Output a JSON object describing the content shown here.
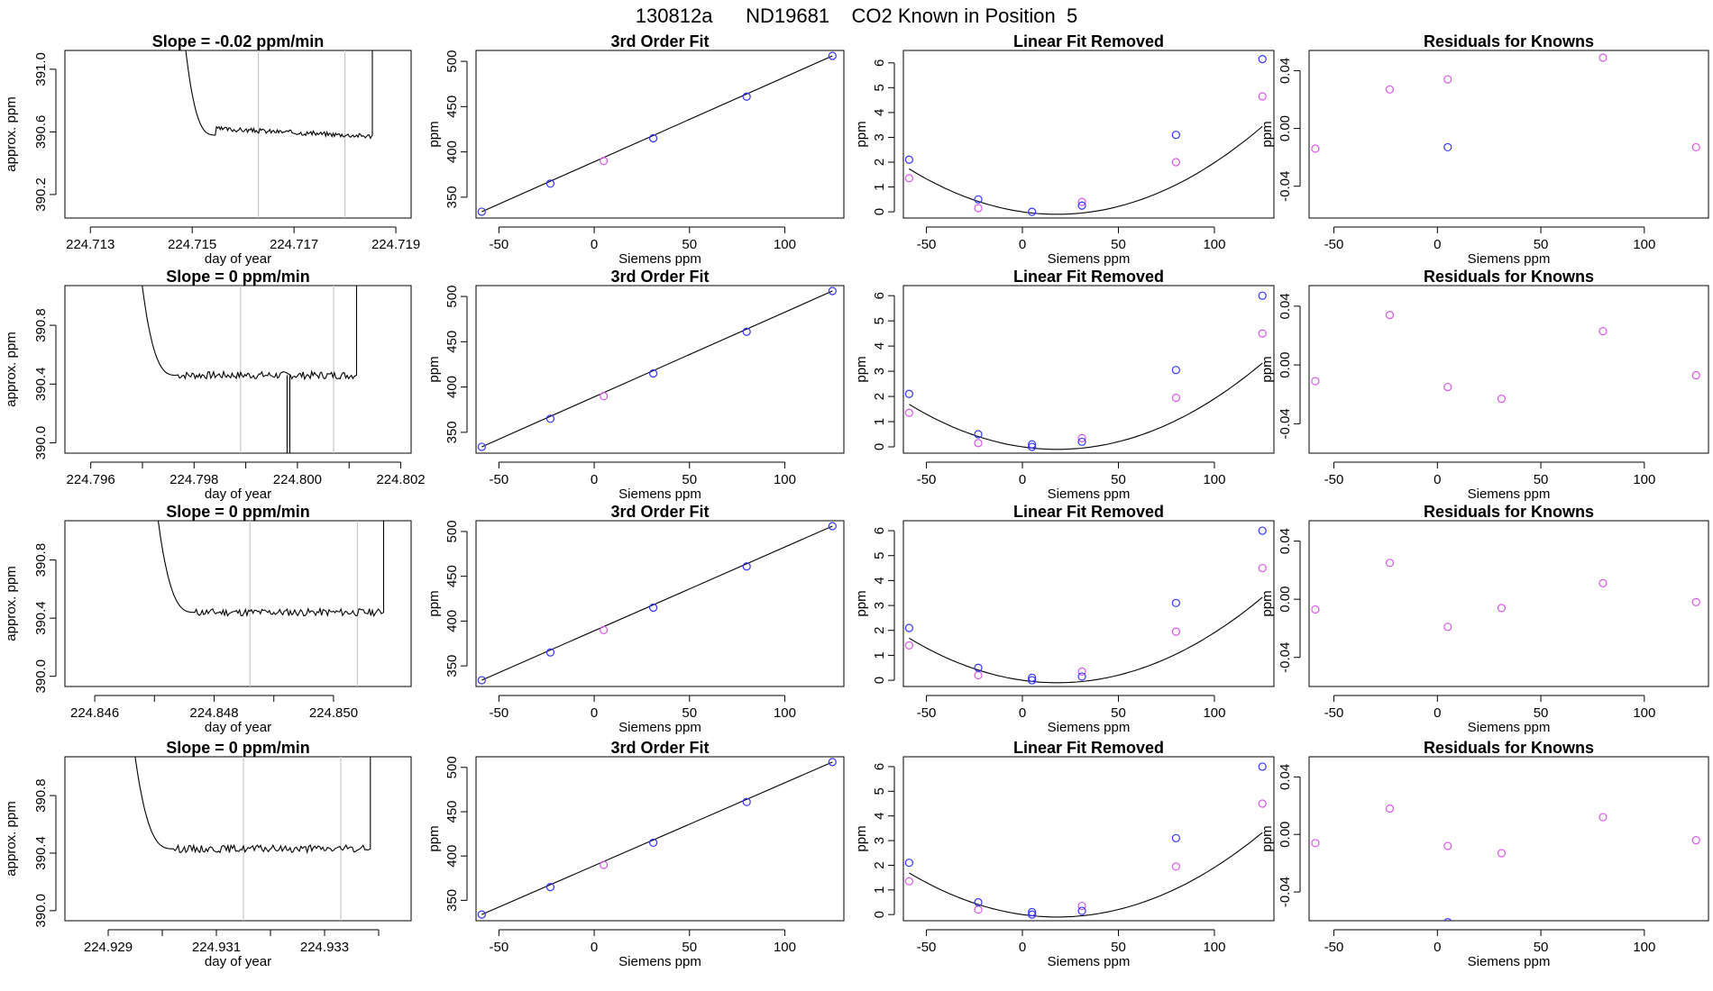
{
  "figure": {
    "title": "130812a      ND19681    CO2 Known in Position  5",
    "colors": {
      "blue": "#3333ff",
      "magenta": "#dd55ee",
      "grey": "#c8c8c8",
      "line": "#000000"
    }
  },
  "chart_data": [
    {
      "type": "line",
      "row": 0,
      "title": "Slope =  -0.02  ppm/min",
      "xlabel": "day of year",
      "ylabel": "approx. ppm",
      "xlim": [
        224.7125,
        224.7193
      ],
      "ylim": [
        390.05,
        391.12
      ],
      "xticks": [
        224.713,
        224.715,
        224.717,
        224.719
      ],
      "xtick_labels": [
        "224.713",
        "224.715",
        "224.717",
        "224.719"
      ],
      "yticks": [
        390.2,
        390.6,
        391.0
      ],
      "ytick_labels": [
        "390.2",
        "390.6",
        "391.0"
      ],
      "vlines": [
        224.7163,
        224.718
      ],
      "trace": {
        "x_start": 224.7146,
        "x_end": 224.7185,
        "level": 390.58
      },
      "spike_at": null
    },
    {
      "type": "scatter",
      "row": 0,
      "title": "3rd Order Fit",
      "xlabel": "Siemens ppm",
      "ylabel": "ppm",
      "xlim": [
        -62,
        131
      ],
      "ylim": [
        327,
        512
      ],
      "xticks": [
        -50,
        0,
        50,
        100
      ],
      "xtick_labels": [
        "-50",
        "0",
        "50",
        "100"
      ],
      "yticks": [
        350,
        400,
        450,
        500
      ],
      "ytick_labels": [
        "350",
        "400",
        "450",
        "500"
      ],
      "fit_line": {
        "x": [
          -59,
          125
        ],
        "y": [
          334,
          506
        ]
      },
      "blue_points": {
        "x": [
          -59,
          -23,
          31,
          80,
          125
        ],
        "y": [
          334,
          365,
          415,
          461,
          506
        ]
      },
      "magenta_points": {
        "x": [
          5
        ],
        "y": [
          390
        ]
      }
    },
    {
      "type": "scatter",
      "row": 0,
      "title": "Linear Fit Removed",
      "xlabel": "Siemens ppm",
      "ylabel": "ppm",
      "xlim": [
        -62,
        131
      ],
      "ylim": [
        -0.25,
        6.5
      ],
      "xticks": [
        -50,
        0,
        50,
        100
      ],
      "xtick_labels": [
        "-50",
        "0",
        "50",
        "100"
      ],
      "yticks": [
        0,
        1,
        2,
        3,
        4,
        5,
        6
      ],
      "ytick_labels": [
        "0",
        "1",
        "2",
        "3",
        "4",
        "5",
        "6"
      ],
      "curve_coeffs": [
        0.0,
        -0.0111,
        0.000309
      ],
      "blue_points": {
        "x": [
          -59,
          -23,
          5,
          31,
          80,
          125
        ],
        "y": [
          2.1,
          0.5,
          0.0,
          0.25,
          3.1,
          6.15
        ]
      },
      "magenta_points": {
        "x": [
          -59,
          -23,
          31,
          80,
          125
        ],
        "y": [
          1.35,
          0.15,
          0.4,
          2.0,
          4.65
        ]
      }
    },
    {
      "type": "scatter",
      "row": 0,
      "title": "Residuals for Knowns",
      "xlabel": "Siemens ppm",
      "ylabel": "ppm",
      "xlim": [
        -62,
        131
      ],
      "ylim": [
        -0.062,
        0.054
      ],
      "xticks": [
        -50,
        0,
        50,
        100
      ],
      "xtick_labels": [
        "-50",
        "0",
        "50",
        "100"
      ],
      "yticks": [
        -0.04,
        0,
        0.04
      ],
      "ytick_labels": [
        "-0.04",
        "0.00",
        "0.04"
      ],
      "blue_points": {
        "x": [
          5
        ],
        "y": [
          -0.013
        ]
      },
      "magenta_points": {
        "x": [
          -59,
          -23,
          5,
          80,
          125
        ],
        "y": [
          -0.014,
          0.027,
          0.034,
          0.049,
          -0.013
        ]
      }
    },
    {
      "type": "line",
      "row": 1,
      "title": "Slope =  0  ppm/min",
      "xlabel": "day of year",
      "ylabel": "approx. ppm",
      "xlim": [
        224.7955,
        224.8022
      ],
      "ylim": [
        389.93,
        391.07
      ],
      "xticks": [
        224.796,
        224.797,
        224.798,
        224.799,
        224.8,
        224.801,
        224.802
      ],
      "xtick_labels": [
        "224.796",
        "",
        "224.798",
        "",
        "224.800",
        "",
        "224.802"
      ],
      "yticks": [
        390.0,
        390.4,
        390.8
      ],
      "ytick_labels": [
        "390.0",
        "390.4",
        "390.8"
      ],
      "vlines": [
        224.7989,
        224.8007
      ],
      "trace": {
        "x_start": 224.7967,
        "x_end": 224.8011,
        "level": 390.46
      },
      "spike_at": 224.7998
    },
    {
      "type": "scatter",
      "row": 1,
      "title": "3rd Order Fit",
      "xlabel": "Siemens ppm",
      "ylabel": "ppm",
      "xlim": [
        -62,
        131
      ],
      "ylim": [
        327,
        512
      ],
      "xticks": [
        -50,
        0,
        50,
        100
      ],
      "xtick_labels": [
        "-50",
        "0",
        "50",
        "100"
      ],
      "yticks": [
        350,
        400,
        450,
        500
      ],
      "ytick_labels": [
        "350",
        "400",
        "450",
        "500"
      ],
      "fit_line": {
        "x": [
          -59,
          125
        ],
        "y": [
          334,
          506
        ]
      },
      "blue_points": {
        "x": [
          -59,
          -23,
          31,
          80,
          125
        ],
        "y": [
          334,
          365,
          415,
          461,
          506
        ]
      },
      "magenta_points": {
        "x": [
          5
        ],
        "y": [
          390
        ]
      }
    },
    {
      "type": "scatter",
      "row": 1,
      "title": "Linear Fit Removed",
      "xlabel": "Siemens ppm",
      "ylabel": "ppm",
      "xlim": [
        -62,
        131
      ],
      "ylim": [
        -0.25,
        6.4
      ],
      "xticks": [
        -50,
        0,
        50,
        100
      ],
      "xtick_labels": [
        "-50",
        "0",
        "50",
        "100"
      ],
      "yticks": [
        0,
        1,
        2,
        3,
        4,
        5,
        6
      ],
      "ytick_labels": [
        "0",
        "1",
        "2",
        "3",
        "4",
        "5",
        "6"
      ],
      "curve_coeffs": [
        0.0,
        -0.0109,
        0.0003
      ],
      "blue_points": {
        "x": [
          -59,
          -23,
          5,
          5,
          31,
          80,
          125
        ],
        "y": [
          2.1,
          0.5,
          0.1,
          0.0,
          0.2,
          3.05,
          6.0
        ]
      },
      "magenta_points": {
        "x": [
          -59,
          -23,
          31,
          80,
          125
        ],
        "y": [
          1.35,
          0.15,
          0.35,
          1.95,
          4.5
        ]
      }
    },
    {
      "type": "scatter",
      "row": 1,
      "title": "Residuals for Knowns",
      "xlabel": "Siemens ppm",
      "ylabel": "ppm",
      "xlim": [
        -62,
        131
      ],
      "ylim": [
        -0.06,
        0.054
      ],
      "xticks": [
        -50,
        0,
        50,
        100
      ],
      "xtick_labels": [
        "-50",
        "0",
        "50",
        "100"
      ],
      "yticks": [
        -0.04,
        0,
        0.04
      ],
      "ytick_labels": [
        "-0.04",
        "0.00",
        "0.04"
      ],
      "blue_points": {
        "x": [],
        "y": []
      },
      "magenta_points": {
        "x": [
          -59,
          -23,
          5,
          31,
          80,
          125
        ],
        "y": [
          -0.011,
          0.034,
          -0.015,
          -0.023,
          0.023,
          -0.007
        ]
      }
    },
    {
      "type": "line",
      "row": 2,
      "title": "Slope =  0  ppm/min",
      "xlabel": "day of year",
      "ylabel": "approx. ppm",
      "xlim": [
        224.8455,
        224.8513
      ],
      "ylim": [
        389.93,
        391.07
      ],
      "xticks": [
        224.846,
        224.847,
        224.848,
        224.849,
        224.85
      ],
      "xtick_labels": [
        "224.846",
        "",
        "224.848",
        "",
        "224.850"
      ],
      "yticks": [
        390.0,
        390.4,
        390.8
      ],
      "ytick_labels": [
        "390.0",
        "390.4",
        "390.8"
      ],
      "vlines": [
        224.8486,
        224.8504
      ],
      "trace": {
        "x_start": 224.8468,
        "x_end": 224.8508,
        "level": 390.44
      },
      "spike_at": null
    },
    {
      "type": "scatter",
      "row": 2,
      "title": "3rd Order Fit",
      "xlabel": "Siemens ppm",
      "ylabel": "ppm",
      "xlim": [
        -62,
        131
      ],
      "ylim": [
        327,
        512
      ],
      "xticks": [
        -50,
        0,
        50,
        100
      ],
      "xtick_labels": [
        "-50",
        "0",
        "50",
        "100"
      ],
      "yticks": [
        350,
        400,
        450,
        500
      ],
      "ytick_labels": [
        "350",
        "400",
        "450",
        "500"
      ],
      "fit_line": {
        "x": [
          -59,
          125
        ],
        "y": [
          334,
          506
        ]
      },
      "blue_points": {
        "x": [
          -59,
          -23,
          31,
          80,
          125
        ],
        "y": [
          334,
          365,
          415,
          461,
          506
        ]
      },
      "magenta_points": {
        "x": [
          5
        ],
        "y": [
          390
        ]
      }
    },
    {
      "type": "scatter",
      "row": 2,
      "title": "Linear Fit Removed",
      "xlabel": "Siemens ppm",
      "ylabel": "ppm",
      "xlim": [
        -62,
        131
      ],
      "ylim": [
        -0.25,
        6.4
      ],
      "xticks": [
        -50,
        0,
        50,
        100
      ],
      "xtick_labels": [
        "-50",
        "0",
        "50",
        "100"
      ],
      "yticks": [
        0,
        1,
        2,
        3,
        4,
        5,
        6
      ],
      "ytick_labels": [
        "0",
        "1",
        "2",
        "3",
        "4",
        "5",
        "6"
      ],
      "curve_coeffs": [
        0.0,
        -0.0109,
        0.0003
      ],
      "blue_points": {
        "x": [
          -59,
          -23,
          5,
          5,
          31,
          80,
          125
        ],
        "y": [
          2.1,
          0.5,
          0.1,
          0.0,
          0.15,
          3.1,
          6.0
        ]
      },
      "magenta_points": {
        "x": [
          -59,
          -23,
          31,
          80,
          125
        ],
        "y": [
          1.4,
          0.2,
          0.35,
          1.95,
          4.5
        ]
      }
    },
    {
      "type": "scatter",
      "row": 2,
      "title": "Residuals for Knowns",
      "xlabel": "Siemens ppm",
      "ylabel": "ppm",
      "xlim": [
        -62,
        131
      ],
      "ylim": [
        -0.06,
        0.054
      ],
      "xticks": [
        -50,
        0,
        50,
        100
      ],
      "xtick_labels": [
        "-50",
        "0",
        "50",
        "100"
      ],
      "yticks": [
        -0.04,
        0,
        0.04
      ],
      "ytick_labels": [
        "-0.04",
        "0.00",
        "0.04"
      ],
      "blue_points": {
        "x": [],
        "y": []
      },
      "magenta_points": {
        "x": [
          -59,
          -23,
          5,
          31,
          80,
          125
        ],
        "y": [
          -0.007,
          0.025,
          -0.019,
          -0.006,
          0.011,
          -0.002
        ]
      }
    },
    {
      "type": "line",
      "row": 3,
      "title": "Slope =  0  ppm/min",
      "xlabel": "day of year",
      "ylabel": "approx. ppm",
      "xlim": [
        224.9282,
        224.9346
      ],
      "ylim": [
        389.93,
        391.07
      ],
      "xticks": [
        224.929,
        224.93,
        224.931,
        224.932,
        224.933,
        224.934
      ],
      "xtick_labels": [
        "224.929",
        "",
        "224.931",
        "",
        "224.933",
        ""
      ],
      "yticks": [
        390.0,
        390.4,
        390.8
      ],
      "ytick_labels": [
        "390.0",
        "390.4",
        "390.8"
      ],
      "vlines": [
        224.9315,
        224.9333
      ],
      "trace": {
        "x_start": 224.9292,
        "x_end": 224.9338,
        "level": 390.43
      },
      "spike_at": null
    },
    {
      "type": "scatter",
      "row": 3,
      "title": "3rd Order Fit",
      "xlabel": "Siemens ppm",
      "ylabel": "ppm",
      "xlim": [
        -62,
        131
      ],
      "ylim": [
        327,
        512
      ],
      "xticks": [
        -50,
        0,
        50,
        100
      ],
      "xtick_labels": [
        "-50",
        "0",
        "50",
        "100"
      ],
      "yticks": [
        350,
        400,
        450,
        500
      ],
      "ytick_labels": [
        "350",
        "400",
        "450",
        "500"
      ],
      "fit_line": {
        "x": [
          -59,
          125
        ],
        "y": [
          334,
          506
        ]
      },
      "blue_points": {
        "x": [
          -59,
          -23,
          31,
          80,
          125
        ],
        "y": [
          334,
          365,
          415,
          461,
          506
        ]
      },
      "magenta_points": {
        "x": [
          5
        ],
        "y": [
          390
        ]
      }
    },
    {
      "type": "scatter",
      "row": 3,
      "title": "Linear Fit Removed",
      "xlabel": "Siemens ppm",
      "ylabel": "ppm",
      "xlim": [
        -62,
        131
      ],
      "ylim": [
        -0.25,
        6.4
      ],
      "xticks": [
        -50,
        0,
        50,
        100
      ],
      "xtick_labels": [
        "-50",
        "0",
        "50",
        "100"
      ],
      "yticks": [
        0,
        1,
        2,
        3,
        4,
        5,
        6
      ],
      "ytick_labels": [
        "0",
        "1",
        "2",
        "3",
        "4",
        "5",
        "6"
      ],
      "curve_coeffs": [
        0.0,
        -0.0109,
        0.0003
      ],
      "blue_points": {
        "x": [
          -59,
          -23,
          5,
          5,
          31,
          80,
          125
        ],
        "y": [
          2.1,
          0.5,
          0.1,
          0.0,
          0.15,
          3.1,
          6.0
        ]
      },
      "magenta_points": {
        "x": [
          -59,
          -23,
          31,
          80,
          125
        ],
        "y": [
          1.35,
          0.2,
          0.35,
          1.95,
          4.5
        ]
      }
    },
    {
      "type": "scatter",
      "row": 3,
      "title": "Residuals for Knowns",
      "xlabel": "Siemens ppm",
      "ylabel": "ppm",
      "xlim": [
        -62,
        131
      ],
      "ylim": [
        -0.06,
        0.054
      ],
      "xticks": [
        -50,
        0,
        50,
        100
      ],
      "xtick_labels": [
        "-50",
        "0",
        "50",
        "100"
      ],
      "yticks": [
        -0.04,
        0,
        0.04
      ],
      "ytick_labels": [
        "-0.04",
        "0.00",
        "0.04"
      ],
      "blue_points": {
        "x": [
          5
        ],
        "y": [
          -0.061
        ]
      },
      "magenta_points": {
        "x": [
          -59,
          -23,
          5,
          31,
          80,
          125
        ],
        "y": [
          -0.006,
          0.018,
          -0.008,
          -0.013,
          0.012,
          -0.004
        ]
      }
    }
  ]
}
